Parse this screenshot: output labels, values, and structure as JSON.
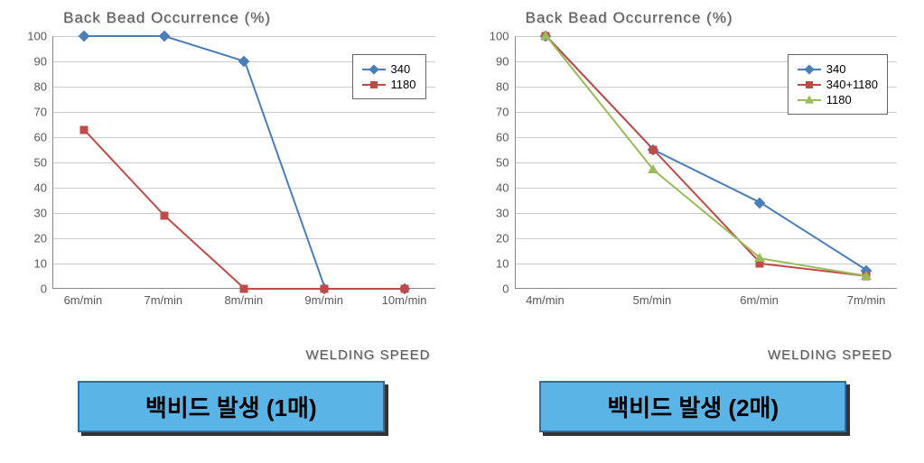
{
  "chart1": {
    "type": "line",
    "title": "Back Bead Occurrence (%)",
    "x_axis_title": "WELDING SPEED",
    "ylim": [
      0,
      100
    ],
    "yticks": [
      0,
      10,
      20,
      30,
      40,
      50,
      60,
      70,
      80,
      90,
      100
    ],
    "categories": [
      "6m/min",
      "7m/min",
      "8m/min",
      "9m/min",
      "10m/min"
    ],
    "grid_color": "#cccccc",
    "axis_color": "#888888",
    "text_color": "#595959",
    "background_color": "#ffffff",
    "title_fontsize": 17,
    "label_fontsize": 13,
    "series": [
      {
        "name": "340",
        "color": "#4a7ebb",
        "marker": "diamond",
        "values": [
          100,
          100,
          90,
          0,
          0
        ]
      },
      {
        "name": "1180",
        "color": "#be4b48",
        "marker": "square",
        "values": [
          63,
          29,
          0,
          0,
          0
        ]
      }
    ],
    "legend_position": "top-right",
    "caption": "백비드 발생 (1매)",
    "caption_bg": "#5ab4e6",
    "caption_border": "#2e6da4",
    "caption_fontsize": 26
  },
  "chart2": {
    "type": "line",
    "title": "Back Bead Occurrence (%)",
    "x_axis_title": "WELDING SPEED",
    "ylim": [
      0,
      100
    ],
    "yticks": [
      0,
      10,
      20,
      30,
      40,
      50,
      60,
      70,
      80,
      90,
      100
    ],
    "categories": [
      "4m/min",
      "5m/min",
      "6m/min",
      "7m/min"
    ],
    "grid_color": "#cccccc",
    "axis_color": "#888888",
    "text_color": "#595959",
    "background_color": "#ffffff",
    "title_fontsize": 17,
    "label_fontsize": 13,
    "series": [
      {
        "name": "340",
        "color": "#4a7ebb",
        "marker": "diamond",
        "values": [
          100,
          55,
          34,
          7
        ]
      },
      {
        "name": "340+1180",
        "color": "#be4b48",
        "marker": "square",
        "values": [
          100,
          55,
          10,
          5
        ]
      },
      {
        "name": "1180",
        "color": "#9abb59",
        "marker": "triangle",
        "values": [
          100,
          47,
          12,
          5
        ]
      }
    ],
    "legend_position": "top-right",
    "caption": "백비드 발생 (2매)",
    "caption_bg": "#5ab4e6",
    "caption_border": "#2e6da4",
    "caption_fontsize": 26
  }
}
